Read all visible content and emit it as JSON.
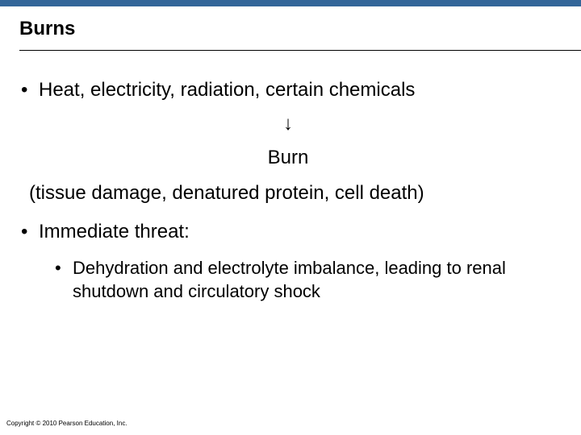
{
  "topBar": {
    "color": "#336699"
  },
  "title": "Burns",
  "bullets": {
    "causes": "Heat, electricity, radiation, certain chemicals",
    "arrow": "↓",
    "burn": "Burn",
    "definition": "(tissue damage, denatured protein, cell death)",
    "threatLabel": "Immediate threat:",
    "threatDetail": "Dehydration and electrolyte imbalance, leading to renal shutdown and circulatory shock"
  },
  "bulletGlyph": "•",
  "copyright": "Copyright © 2010 Pearson Education, Inc."
}
